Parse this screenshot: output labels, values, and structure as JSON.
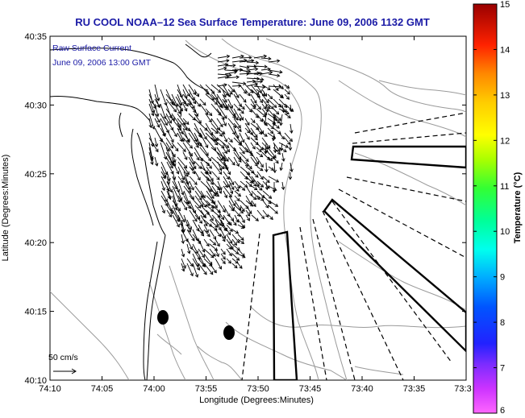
{
  "title": "RU COOL  NOAA–12  Sea Surface Temperature:  June 09, 2006 1132 GMT",
  "annotation": {
    "line1": "Raw Surface Current",
    "line2": "June 09, 2006 13:00 GMT"
  },
  "scale_label": "50 cm/s",
  "xlabel": "Longitude (Degrees:Minutes)",
  "ylabel": "Latitude (Degrees:Minutes)",
  "xticks": [
    "74:10",
    "74:05",
    "74:00",
    "73:55",
    "73:50",
    "73:45",
    "73:40",
    "73:35",
    "73:3"
  ],
  "yticks": [
    "40:35",
    "40:30",
    "40:25",
    "40:20",
    "40:15",
    "40:10"
  ],
  "colorbar": {
    "label": "Temperature (°C)",
    "ticks": [
      "15",
      "14",
      "13",
      "12",
      "11",
      "10",
      "9",
      "8",
      "7",
      "6"
    ],
    "min": 6,
    "max": 15
  },
  "colors": {
    "title": "#1a1aa6",
    "land_outline": "#000000",
    "bathymetry": "#999999",
    "vectors": "#000000"
  },
  "chart_data": {
    "type": "map",
    "x_range": [
      "74:10",
      "73:30"
    ],
    "y_range": [
      "40:10",
      "40:35"
    ],
    "grid": false,
    "legend": "colorbar right"
  }
}
